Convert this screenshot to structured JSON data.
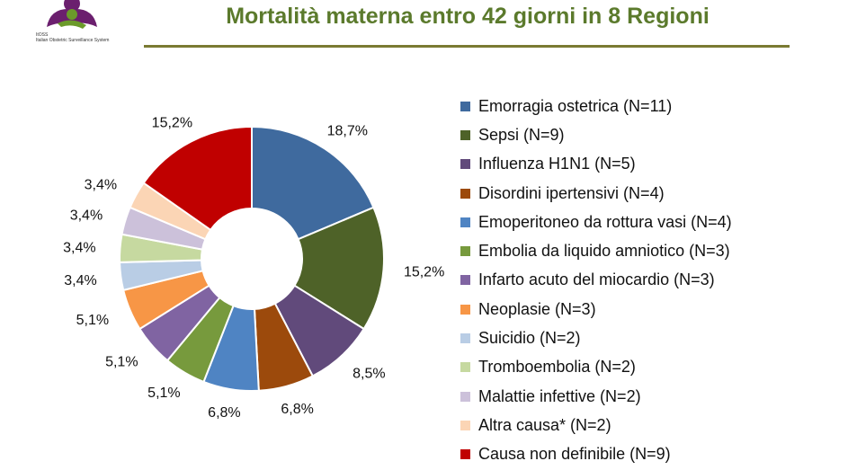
{
  "logo": {
    "acronym": "ItOSS",
    "name": "Italian Obstetric Surveillance System"
  },
  "chart_data": {
    "type": "pie",
    "variant": "donut",
    "title": "Mortalità materna entro 42 giorni in 8 Regioni",
    "legend_position": "right",
    "slices": [
      {
        "label": "Emorragia ostetrica (N=11)",
        "value": 11,
        "pct_label": "18,7%",
        "color": "#3f6a9e"
      },
      {
        "label": "Sepsi (N=9)",
        "value": 9,
        "pct_label": "15,2%",
        "color": "#4e6228"
      },
      {
        "label": "Influenza H1N1 (N=5)",
        "value": 5,
        "pct_label": "8,5%",
        "color": "#614a7b"
      },
      {
        "label": "Disordini ipertensivi (N=4)",
        "value": 4,
        "pct_label": "6,8%",
        "color": "#9c4a0c"
      },
      {
        "label": "Emoperitoneo da rottura vasi (N=4)",
        "value": 4,
        "pct_label": "6,8%",
        "color": "#4f84c3"
      },
      {
        "label": "Embolia da liquido amniotico (N=3)",
        "value": 3,
        "pct_label": "5,1%",
        "color": "#779a3d"
      },
      {
        "label": "Infarto acuto del miocardio (N=3)",
        "value": 3,
        "pct_label": "5,1%",
        "color": "#8064a2"
      },
      {
        "label": "Neoplasie (N=3)",
        "value": 3,
        "pct_label": "5,1%",
        "color": "#f79646"
      },
      {
        "label": "Suicidio (N=2)",
        "value": 2,
        "pct_label": "3,4%",
        "color": "#b9cde5"
      },
      {
        "label": "Tromboembolia (N=2)",
        "value": 2,
        "pct_label": "3,4%",
        "color": "#c6d9a0"
      },
      {
        "label": "Malattie infettive (N=2)",
        "value": 2,
        "pct_label": "3,4%",
        "color": "#ccc1da"
      },
      {
        "label": "Altra causa* (N=2)",
        "value": 2,
        "pct_label": "3,4%",
        "color": "#fbd5b5"
      },
      {
        "label": "Causa non definibile (N=9)",
        "value": 9,
        "pct_label": "15,2%",
        "color": "#c00000"
      }
    ]
  }
}
